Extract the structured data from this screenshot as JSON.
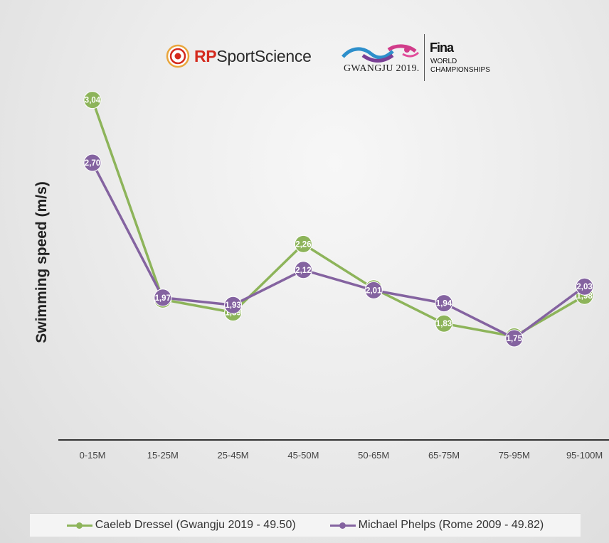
{
  "logos": {
    "rp_prefix": "RP",
    "rp_suffix": "SportScience",
    "gwangju": "GWANGJU 2019.",
    "fina": "Fina",
    "world": "WORLD",
    "championships": "CHAMPIONSHIPS"
  },
  "colors": {
    "dressel": "#8db45a",
    "phelps": "#8463a0",
    "axis": "#333333"
  },
  "chart_data": {
    "type": "line",
    "ylabel": "Swimming speed  (m/s)",
    "xlabel": "",
    "categories": [
      "0-15M",
      "15-25M",
      "25-45M",
      "45-50M",
      "50-65M",
      "65-75M",
      "75-95M",
      "95-100M"
    ],
    "ylim": [
      1.2,
      3.2
    ],
    "grid": false,
    "legend_position": "bottom",
    "series": [
      {
        "name": "Caeleb Dressel (Gwangju 2019 - 49.50)",
        "values": [
          3.04,
          1.96,
          1.89,
          2.26,
          2.02,
          1.83,
          1.76,
          1.98
        ],
        "labels": [
          "3,04",
          "1,96",
          "1,89",
          "2,26",
          "2,02",
          "1,83",
          "1,76",
          "1,98"
        ]
      },
      {
        "name": "Michael Phelps (Rome 2009 - 49.82)",
        "values": [
          2.7,
          1.97,
          1.93,
          2.12,
          2.01,
          1.94,
          1.75,
          2.03
        ],
        "labels": [
          "2,70",
          "1,97",
          "1,93",
          "2,12",
          "2,01",
          "1,94",
          "1,75",
          "2,03"
        ]
      }
    ]
  }
}
